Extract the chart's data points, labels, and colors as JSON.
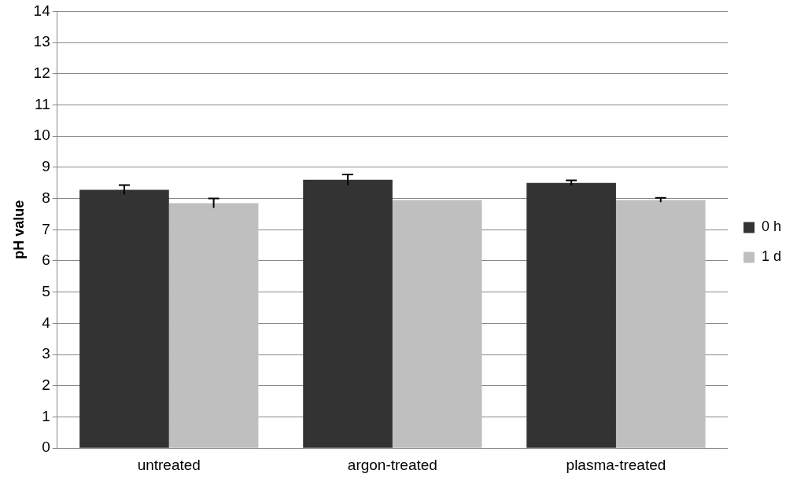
{
  "chart_data": {
    "type": "bar",
    "ylabel": "pH value",
    "categories": [
      "untreated",
      "argon-treated",
      "plasma-treated"
    ],
    "series": [
      {
        "name": "0 h",
        "color": "#333333",
        "values": [
          8.28,
          8.6,
          8.5
        ],
        "errors": [
          0.15,
          0.17,
          0.08
        ]
      },
      {
        "name": "1 d",
        "color": "#bfbfbf",
        "values": [
          7.85,
          7.95,
          7.95
        ],
        "errors": [
          0.15,
          null,
          0.07
        ]
      }
    ],
    "ylim": [
      0,
      14
    ],
    "yticks": [
      0,
      1,
      2,
      3,
      4,
      5,
      6,
      7,
      8,
      9,
      10,
      11,
      12,
      13,
      14
    ],
    "grid": "y",
    "legend": "right"
  }
}
